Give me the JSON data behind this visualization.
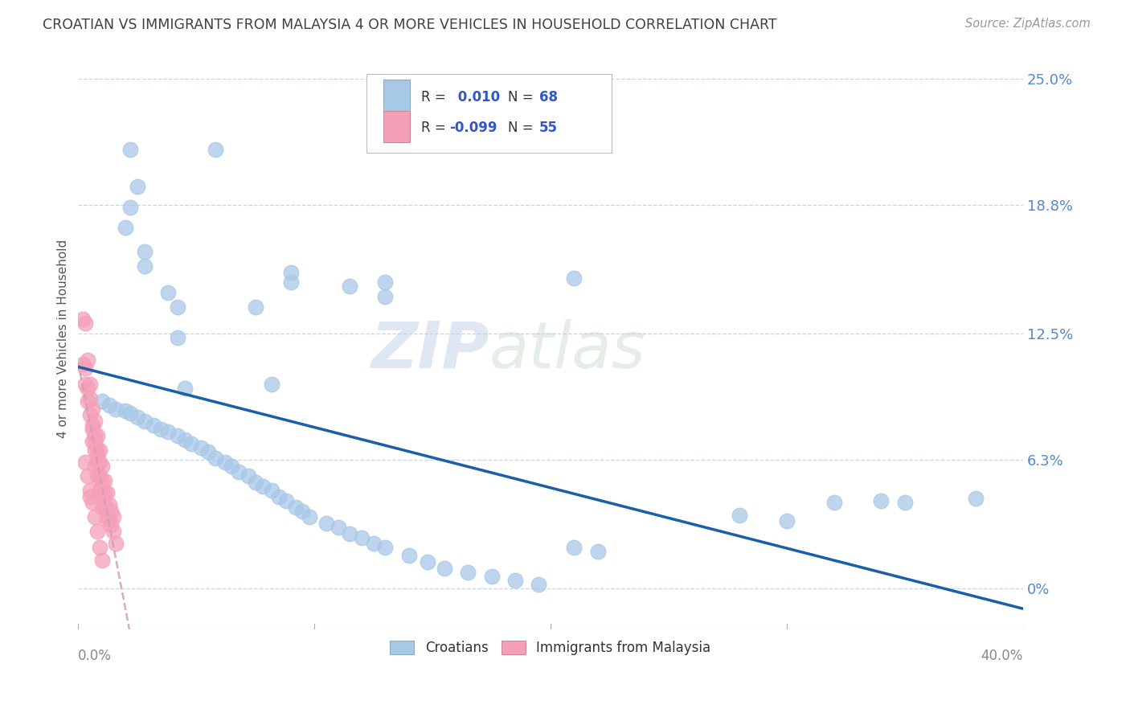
{
  "title": "CROATIAN VS IMMIGRANTS FROM MALAYSIA 4 OR MORE VEHICLES IN HOUSEHOLD CORRELATION CHART",
  "source": "Source: ZipAtlas.com",
  "ylabel": "4 or more Vehicles in Household",
  "watermark_zip": "ZIP",
  "watermark_atlas": "atlas",
  "xlim": [
    0.0,
    0.4
  ],
  "ylim": [
    -0.02,
    0.265
  ],
  "ytick_positions": [
    0.0,
    0.063,
    0.125,
    0.188,
    0.25
  ],
  "ytick_labels": [
    "0%",
    "6.3%",
    "12.5%",
    "18.8%",
    "25.0%"
  ],
  "xtick_left_label": "0.0%",
  "xtick_right_label": "40.0%",
  "legend_R1": "R=  0.010",
  "legend_N1": "N = 68",
  "legend_R2": "R = -0.099",
  "legend_N2": "N = 55",
  "croatians_color": "#a8c8e8",
  "malaysia_color": "#f5a0b8",
  "trend_croatians_color": "#1a5faa",
  "trend_malaysia_color": "#cc4466",
  "trend_malaysia_dashed_color": "#d0a0b0",
  "grid_color": "#c8d4e8",
  "background_color": "#ffffff",
  "title_color": "#404040",
  "axis_label_color": "#5588cc",
  "legend_text_color": "#333333",
  "legend_value_color": "#3355cc",
  "croatians_x": [
    0.022,
    0.058,
    0.025,
    0.022,
    0.02,
    0.028,
    0.028,
    0.038,
    0.042,
    0.075,
    0.09,
    0.115,
    0.13,
    0.21,
    0.042,
    0.09,
    0.01,
    0.013,
    0.016,
    0.02,
    0.022,
    0.025,
    0.028,
    0.032,
    0.035,
    0.038,
    0.042,
    0.045,
    0.048,
    0.052,
    0.055,
    0.058,
    0.062,
    0.065,
    0.068,
    0.072,
    0.075,
    0.078,
    0.082,
    0.085,
    0.088,
    0.092,
    0.095,
    0.098,
    0.105,
    0.11,
    0.115,
    0.12,
    0.125,
    0.13,
    0.14,
    0.148,
    0.155,
    0.165,
    0.175,
    0.185,
    0.195,
    0.21,
    0.22,
    0.28,
    0.3,
    0.32,
    0.34,
    0.35,
    0.38,
    0.082,
    0.045,
    0.13
  ],
  "croatians_y": [
    0.215,
    0.215,
    0.197,
    0.187,
    0.177,
    0.165,
    0.158,
    0.145,
    0.138,
    0.138,
    0.15,
    0.148,
    0.143,
    0.152,
    0.123,
    0.155,
    0.092,
    0.09,
    0.088,
    0.087,
    0.086,
    0.084,
    0.082,
    0.08,
    0.078,
    0.077,
    0.075,
    0.073,
    0.071,
    0.069,
    0.067,
    0.064,
    0.062,
    0.06,
    0.057,
    0.055,
    0.052,
    0.05,
    0.048,
    0.045,
    0.043,
    0.04,
    0.038,
    0.035,
    0.032,
    0.03,
    0.027,
    0.025,
    0.022,
    0.02,
    0.016,
    0.013,
    0.01,
    0.008,
    0.006,
    0.004,
    0.002,
    0.02,
    0.018,
    0.036,
    0.033,
    0.042,
    0.043,
    0.042,
    0.044,
    0.1,
    0.098,
    0.15
  ],
  "malaysia_x": [
    0.002,
    0.003,
    0.002,
    0.003,
    0.003,
    0.004,
    0.004,
    0.004,
    0.005,
    0.005,
    0.005,
    0.006,
    0.006,
    0.006,
    0.007,
    0.007,
    0.007,
    0.007,
    0.008,
    0.008,
    0.008,
    0.008,
    0.009,
    0.009,
    0.009,
    0.009,
    0.01,
    0.01,
    0.01,
    0.01,
    0.011,
    0.011,
    0.011,
    0.012,
    0.012,
    0.012,
    0.013,
    0.013,
    0.014,
    0.014,
    0.015,
    0.015,
    0.016,
    0.003,
    0.004,
    0.005,
    0.006,
    0.007,
    0.008,
    0.006,
    0.007,
    0.008,
    0.005,
    0.009,
    0.01
  ],
  "malaysia_y": [
    0.132,
    0.13,
    0.11,
    0.108,
    0.1,
    0.112,
    0.098,
    0.092,
    0.1,
    0.093,
    0.085,
    0.088,
    0.08,
    0.072,
    0.082,
    0.075,
    0.068,
    0.06,
    0.075,
    0.068,
    0.062,
    0.055,
    0.068,
    0.062,
    0.055,
    0.048,
    0.06,
    0.053,
    0.046,
    0.04,
    0.053,
    0.047,
    0.04,
    0.047,
    0.04,
    0.034,
    0.041,
    0.034,
    0.038,
    0.031,
    0.035,
    0.028,
    0.022,
    0.062,
    0.055,
    0.048,
    0.042,
    0.035,
    0.028,
    0.078,
    0.072,
    0.065,
    0.045,
    0.02,
    0.014
  ],
  "blue_hline_y": 0.088,
  "malaysia_trend_x_end": 0.25
}
